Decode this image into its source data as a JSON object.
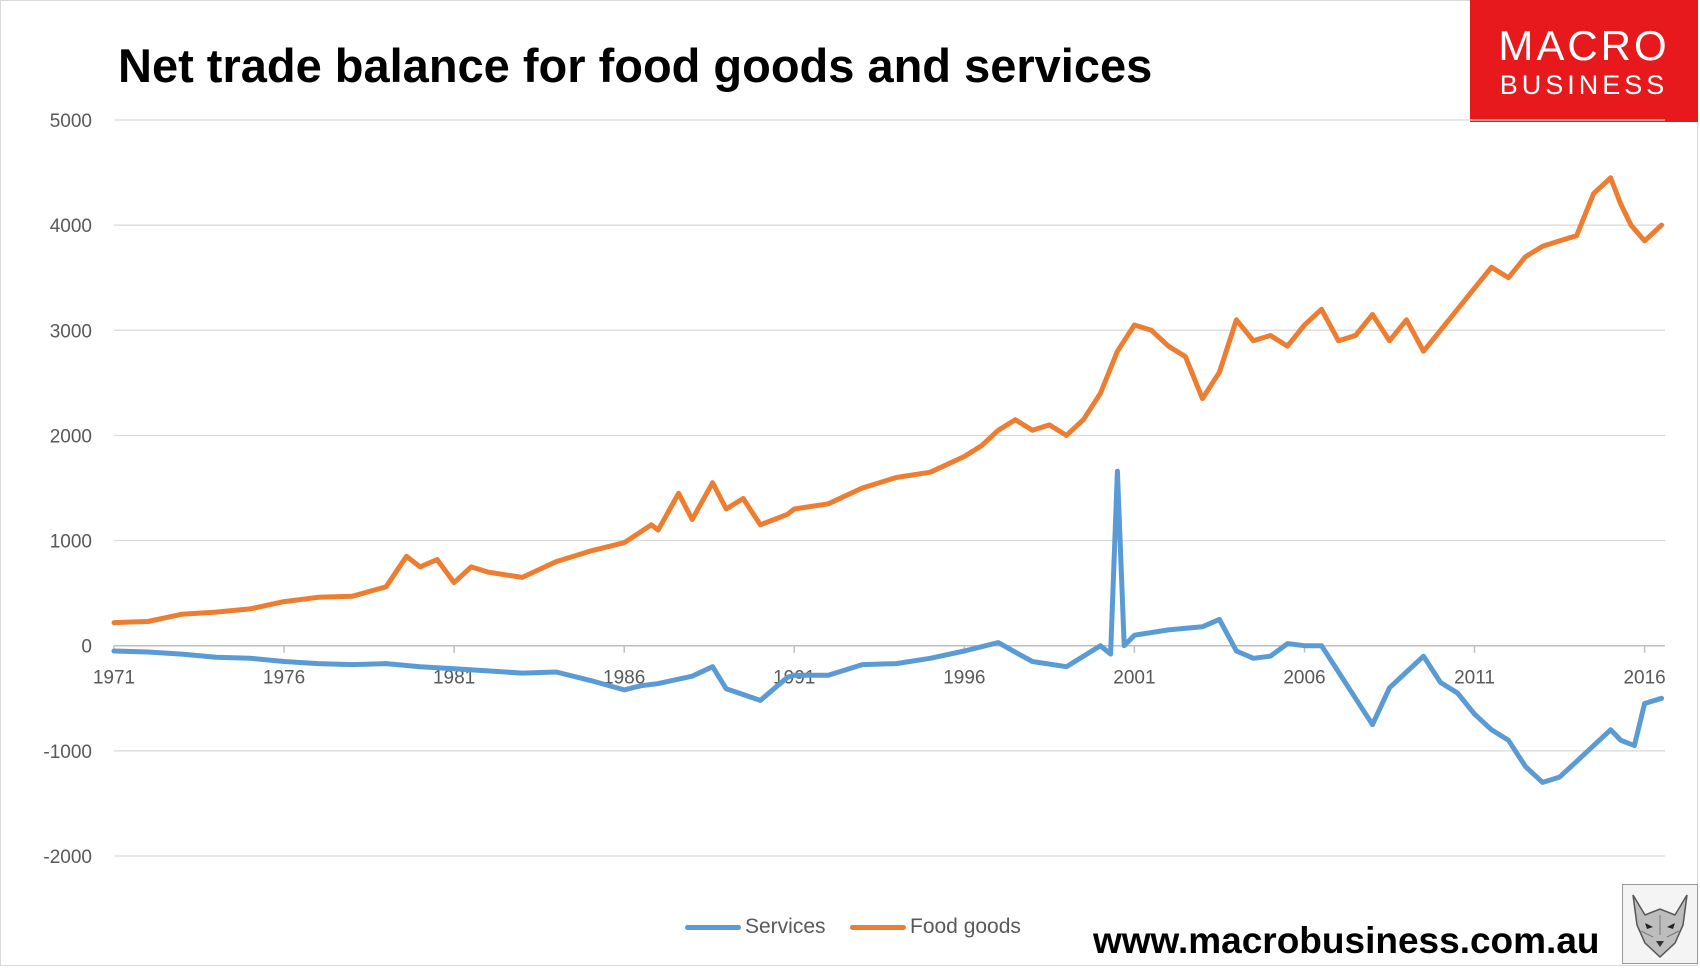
{
  "chart_data": {
    "type": "line",
    "title": "Net trade balance for food goods and services",
    "xlabel": "",
    "ylabel": "",
    "ylim": [
      -2000,
      5000
    ],
    "y_ticks": [
      5000,
      4000,
      3000,
      2000,
      1000,
      0,
      -1000,
      -2000
    ],
    "x_range": [
      1971.0,
      2016.6
    ],
    "x_tick_labels": [
      "1971",
      "1976",
      "1981",
      "1986",
      "1991",
      "1996",
      "2001",
      "2006",
      "2011",
      "2016"
    ],
    "grid": true,
    "legend_position": "bottom",
    "series": [
      {
        "name": "Services",
        "color": "#5b9bd5",
        "x": [
          1971.0,
          1972.0,
          1973.0,
          1974.0,
          1975.0,
          1976.0,
          1977.0,
          1978.0,
          1979.0,
          1980.0,
          1981.0,
          1982.0,
          1983.0,
          1984.0,
          1985.0,
          1986.0,
          1986.5,
          1987.0,
          1988.0,
          1988.6,
          1989.0,
          1990.0,
          1990.8,
          1991.0,
          1992.0,
          1993.0,
          1994.0,
          1995.0,
          1996.0,
          1997.0,
          1997.6,
          1998.0,
          1999.0,
          2000.0,
          2000.3,
          2000.5,
          2000.7,
          2001.0,
          2002.0,
          2003.0,
          2003.5,
          2004.0,
          2004.5,
          2005.0,
          2005.5,
          2006.0,
          2006.5,
          2007.0,
          2007.5,
          2008.0,
          2008.5,
          2009.0,
          2009.5,
          2010.0,
          2010.5,
          2011.0,
          2011.5,
          2012.0,
          2012.5,
          2013.0,
          2013.5,
          2014.0,
          2014.5,
          2015.0,
          2015.3,
          2015.7,
          2016.0,
          2016.5
        ],
        "values": [
          -50,
          -60,
          -80,
          -110,
          -120,
          -150,
          -170,
          -180,
          -170,
          -200,
          -220,
          -240,
          -260,
          -250,
          -330,
          -420,
          -380,
          -360,
          -290,
          -200,
          -410,
          -520,
          -300,
          -280,
          -280,
          -180,
          -170,
          -120,
          -50,
          30,
          -80,
          -150,
          -200,
          0,
          -80,
          1660,
          0,
          100,
          150,
          180,
          250,
          -50,
          -120,
          -100,
          20,
          0,
          0,
          -250,
          -500,
          -750,
          -400,
          -250,
          -100,
          -350,
          -450,
          -650,
          -800,
          -900,
          -1150,
          -1300,
          -1250,
          -1100,
          -950,
          -800,
          -900,
          -950,
          -550,
          -500
        ]
      },
      {
        "name": "Food goods",
        "color": "#ed7d31",
        "x": [
          1971.0,
          1972.0,
          1973.0,
          1974.0,
          1975.0,
          1976.0,
          1977.0,
          1978.0,
          1979.0,
          1979.6,
          1980.0,
          1980.5,
          1981.0,
          1981.5,
          1982.0,
          1983.0,
          1984.0,
          1985.0,
          1986.0,
          1986.8,
          1987.0,
          1987.6,
          1988.0,
          1988.6,
          1989.0,
          1989.5,
          1990.0,
          1990.8,
          1991.0,
          1992.0,
          1993.0,
          1994.0,
          1995.0,
          1996.0,
          1996.5,
          1997.0,
          1997.5,
          1998.0,
          1998.5,
          1999.0,
          1999.5,
          2000.0,
          2000.5,
          2001.0,
          2001.5,
          2002.0,
          2002.5,
          2003.0,
          2003.5,
          2004.0,
          2004.5,
          2005.0,
          2005.5,
          2006.0,
          2006.5,
          2007.0,
          2007.5,
          2008.0,
          2008.5,
          2009.0,
          2009.5,
          2010.0,
          2010.5,
          2011.0,
          2011.5,
          2012.0,
          2012.5,
          2013.0,
          2013.5,
          2014.0,
          2014.5,
          2015.0,
          2015.3,
          2015.6,
          2016.0,
          2016.5
        ],
        "values": [
          220,
          230,
          300,
          320,
          350,
          420,
          460,
          470,
          560,
          850,
          750,
          820,
          600,
          750,
          700,
          650,
          800,
          900,
          980,
          1150,
          1100,
          1450,
          1200,
          1550,
          1300,
          1400,
          1150,
          1250,
          1300,
          1350,
          1500,
          1600,
          1650,
          1800,
          1900,
          2050,
          2150,
          2050,
          2100,
          2000,
          2150,
          2400,
          2800,
          3050,
          3000,
          2850,
          2750,
          2350,
          2600,
          3100,
          2900,
          2950,
          2850,
          3050,
          3200,
          2900,
          2950,
          3150,
          2900,
          3100,
          2800,
          3000,
          3200,
          3400,
          3600,
          3500,
          3700,
          3800,
          3850,
          3900,
          4300,
          4450,
          4200,
          4000,
          3850,
          4000
        ]
      }
    ]
  },
  "logo": {
    "line1": "MACRO",
    "line2": "BUSINESS",
    "color": "#e8191c"
  },
  "website": "www.macrobusiness.com.au",
  "wolf_image": "wolf-logo-icon"
}
